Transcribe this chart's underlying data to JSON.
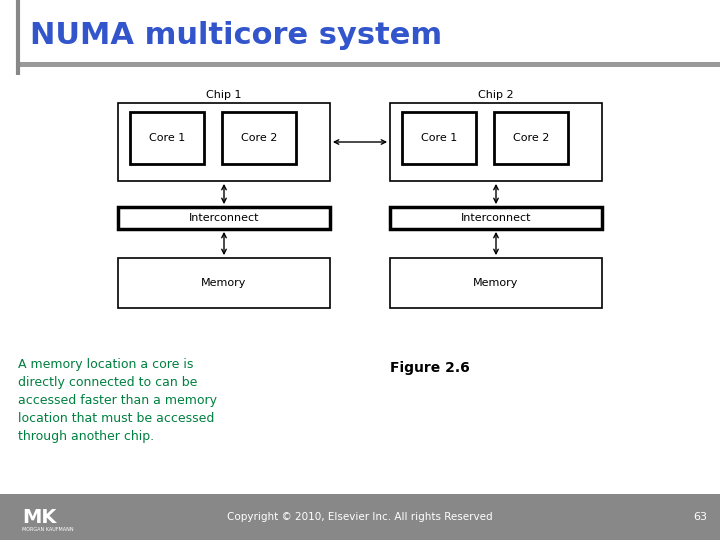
{
  "title": "NUMA multicore system",
  "title_color": "#3355cc",
  "title_fontsize": 22,
  "title_fontweight": "bold",
  "bg_color": "#ffffff",
  "header_bar_color": "#999999",
  "chip1_label": "Chip 1",
  "chip2_label": "Chip 2",
  "core1_label": "Core 1",
  "core2_label": "Core 2",
  "interconnect_label": "Interconnect",
  "memory_label": "Memory",
  "figure2_label": "Figure 2.6",
  "body_text": "A memory location a core is\ndirectly connected to can be\naccessed faster than a memory\nlocation that must be accessed\nthrough another chip.",
  "body_text_color": "#008040",
  "footer_text": "Copyright © 2010, Elsevier Inc. All rights Reserved",
  "footer_number": "63",
  "footer_bg": "#888888",
  "footer_fg": "#ffffff",
  "left_bar_color": "#888888",
  "diagram_fontsize": 8,
  "chip_label_fontsize": 8
}
